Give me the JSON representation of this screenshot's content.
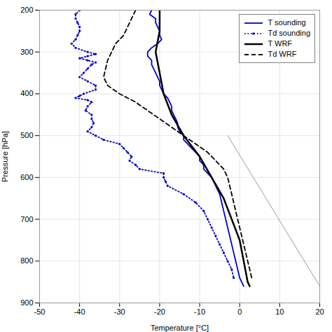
{
  "chart_data": {
    "type": "line",
    "xlabel": "Temperature [°C]",
    "ylabel": "Pressure [hPa]",
    "xlim": [
      -50,
      20
    ],
    "ylim": [
      900,
      200
    ],
    "xticks": [
      -50,
      -40,
      -30,
      -20,
      -10,
      0,
      10,
      20
    ],
    "yticks": [
      200,
      300,
      400,
      500,
      600,
      700,
      800,
      900
    ],
    "grid": true,
    "legend": "upper right",
    "series": [
      {
        "name": "T sounding",
        "color": "#0000cc",
        "line_style": "solid",
        "x": [
          -22,
          -22.5,
          -21,
          -21,
          -20.5,
          -20,
          -20,
          -19.5,
          -20.5,
          -22,
          -23,
          -23,
          -22,
          -22,
          -21.5,
          -21,
          -20.5,
          -20,
          -20,
          -19.5,
          -19,
          -18,
          -17.5,
          -17,
          -17,
          -16.5,
          -16,
          -15.5,
          -15.5,
          -15,
          -14,
          -14,
          -13,
          -12,
          -11,
          -10,
          -10,
          -9,
          -9,
          -8,
          -7,
          -6,
          -5,
          -4.5,
          -4,
          -3.5,
          -3,
          -2.5,
          -2,
          -1.5,
          -1,
          -0.5,
          0,
          1
        ],
        "values": [
          200,
          210,
          220,
          230,
          240,
          250,
          260,
          270,
          280,
          290,
          300,
          310,
          320,
          330,
          340,
          350,
          360,
          370,
          380,
          390,
          400,
          410,
          420,
          430,
          440,
          450,
          460,
          470,
          480,
          490,
          500,
          510,
          520,
          530,
          540,
          550,
          560,
          570,
          580,
          590,
          600,
          620,
          640,
          660,
          680,
          700,
          720,
          740,
          760,
          780,
          800,
          820,
          840,
          860
        ]
      },
      {
        "name": "Td sounding",
        "color": "#0000cc",
        "line_style": "dotted",
        "marker": "point",
        "x": [
          -40,
          -41,
          -41,
          -40.5,
          -40,
          -40,
          -40.5,
          -41,
          -42,
          -41,
          -38,
          -36,
          -38,
          -40,
          -38,
          -36,
          -37,
          -38,
          -39,
          -40,
          -38,
          -36,
          -36,
          -39,
          -40,
          -41,
          -38,
          -37,
          -38,
          -38.5,
          -37,
          -37,
          -36.5,
          -37,
          -38,
          -36,
          -34,
          -30,
          -29,
          -28,
          -27,
          -27.5,
          -26,
          -25,
          -19,
          -19,
          -18.5,
          -18,
          -14,
          -11,
          -9,
          -8,
          -7,
          -6,
          -5,
          -4,
          -3,
          -2,
          -1.5
        ],
        "values": [
          200,
          210,
          220,
          230,
          240,
          250,
          260,
          270,
          280,
          290,
          300,
          305,
          310,
          315,
          320,
          325,
          330,
          340,
          350,
          360,
          370,
          380,
          390,
          400,
          405,
          410,
          415,
          420,
          430,
          440,
          450,
          460,
          470,
          480,
          490,
          500,
          510,
          520,
          530,
          540,
          550,
          560,
          570,
          580,
          590,
          600,
          610,
          620,
          640,
          660,
          680,
          700,
          720,
          740,
          760,
          780,
          800,
          820,
          840
        ]
      },
      {
        "name": "T WRF",
        "color": "#000000",
        "line_style": "solid",
        "x": [
          -20,
          -20,
          -21,
          -20,
          -19,
          -17,
          -14,
          -10,
          -7,
          -4,
          -2,
          0,
          1,
          2,
          2.5
        ],
        "values": [
          200,
          250,
          300,
          350,
          400,
          450,
          500,
          550,
          600,
          650,
          700,
          750,
          800,
          850,
          860
        ]
      },
      {
        "name": "Td WRF",
        "color": "#000000",
        "line_style": "dashed",
        "x": [
          -26,
          -27,
          -28,
          -29,
          -31,
          -32,
          -33,
          -33.5,
          -34,
          -33,
          -30,
          -26,
          -23,
          -20,
          -17,
          -14,
          -11,
          -8,
          -6,
          -4,
          -3,
          -2.5,
          -2,
          -1.5,
          -1,
          -0.5,
          0,
          0.5,
          1,
          1.5,
          2,
          2.5,
          3
        ],
        "values": [
          200,
          220,
          240,
          260,
          280,
          300,
          320,
          340,
          360,
          380,
          400,
          420,
          440,
          460,
          480,
          500,
          520,
          540,
          560,
          580,
          600,
          620,
          640,
          660,
          680,
          700,
          720,
          740,
          760,
          780,
          800,
          820,
          840
        ]
      },
      {
        "color": "#808080",
        "line_style": "solid",
        "x": [
          -3,
          20
        ],
        "values": [
          500,
          860
        ]
      }
    ]
  }
}
